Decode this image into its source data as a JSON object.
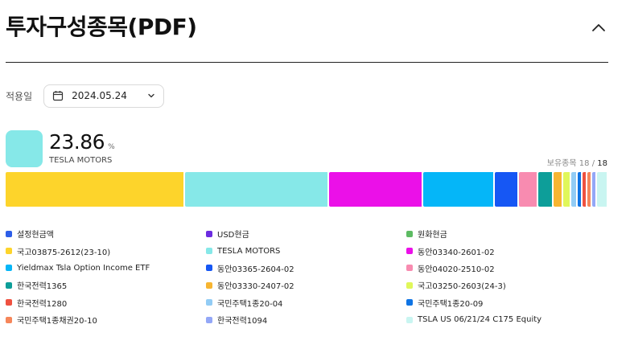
{
  "header": {
    "title": "투자구성종목(PDF)",
    "collapse_icon": "chevron-up-icon"
  },
  "date_filter": {
    "label": "적용일",
    "value": "2024.05.24",
    "icon": "calendar-icon"
  },
  "top_holding": {
    "percent": "23.86",
    "unit": "%",
    "name": "TESLA MOTORS",
    "color": "#86E8E8"
  },
  "holdings_count": {
    "label": "보유종목",
    "shown": "18",
    "separator": "/",
    "total": "18"
  },
  "composition_bar": [
    {
      "name": "국고03875-2612(23-10)",
      "share": 29.7,
      "color": "#FDD42B"
    },
    {
      "name": "TESLA MOTORS",
      "share": 23.86,
      "color": "#86E8E8"
    },
    {
      "name": "동안03340-2601-02",
      "share": 15.7,
      "color": "#EB10E8"
    },
    {
      "name": "Yieldmax Tsla Option Income ETF",
      "share": 11.8,
      "color": "#05B6F8"
    },
    {
      "name": "동안03365-2604-02",
      "share": 4.0,
      "color": "#1657F4"
    },
    {
      "name": "동안04020-2510-02",
      "share": 3.2,
      "color": "#F88BB0"
    },
    {
      "name": "한국전력1365",
      "share": 2.6,
      "color": "#0D9E99"
    },
    {
      "name": "동안03330-2407-02",
      "share": 1.5,
      "color": "#F7B531"
    },
    {
      "name": "국고03250-2603(24-3)",
      "share": 1.4,
      "color": "#E0F75A"
    },
    {
      "name": "국민주택1종20-04",
      "share": 1.0,
      "color": "#92CCF5"
    },
    {
      "name": "국민주택1종20-09",
      "share": 0.9,
      "color": "#0F74E4"
    },
    {
      "name": "한국전력1280",
      "share": 0.8,
      "color": "#EF5140"
    },
    {
      "name": "국민주택1종채권20-10",
      "share": 0.8,
      "color": "#F6865A"
    },
    {
      "name": "한국전력1094",
      "share": 0.7,
      "color": "#93A7F7"
    },
    {
      "name": "TSLA US 06/21/24 C175 Equity",
      "share": 1.9,
      "color": "#C9F5F1"
    }
  ],
  "legend": [
    [
      {
        "name": "설정현금액",
        "color": "#2D5EE8"
      },
      {
        "name": "USD현금",
        "color": "#6C2CE0"
      },
      {
        "name": "원화현금",
        "color": "#5DBB63"
      }
    ],
    [
      {
        "name": "국고03875-2612(23-10)",
        "color": "#FDD42B"
      },
      {
        "name": "TESLA MOTORS",
        "color": "#86E8E8"
      },
      {
        "name": "동안03340-2601-02",
        "color": "#EB10E8"
      }
    ],
    [
      {
        "name": "Yieldmax Tsla Option Income ETF",
        "color": "#05B6F8"
      },
      {
        "name": "동안03365-2604-02",
        "color": "#1657F4"
      },
      {
        "name": "동안04020-2510-02",
        "color": "#F88BB0"
      }
    ],
    [
      {
        "name": "한국전력1365",
        "color": "#0D9E99"
      },
      {
        "name": "동안03330-2407-02",
        "color": "#F7B531"
      },
      {
        "name": "국고03250-2603(24-3)",
        "color": "#E0F75A"
      }
    ],
    [
      {
        "name": "한국전력1280",
        "color": "#EF5140"
      },
      {
        "name": "국민주택1종20-04",
        "color": "#92CCF5"
      },
      {
        "name": "국민주택1종20-09",
        "color": "#0F74E4"
      }
    ],
    [
      {
        "name": "국민주택1종채권20-10",
        "color": "#F6865A"
      },
      {
        "name": "한국전력1094",
        "color": "#93A7F7"
      },
      {
        "name": "TSLA US 06/21/24 C175 Equity",
        "color": "#C9F5F1"
      }
    ]
  ]
}
